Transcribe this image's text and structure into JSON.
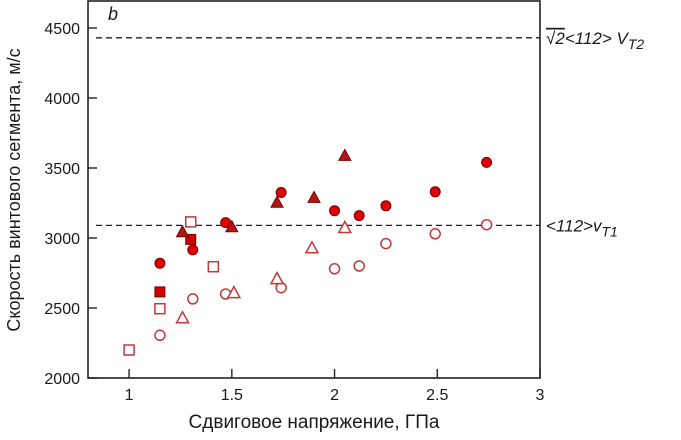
{
  "chart_data": {
    "type": "scatter",
    "panel_label": "b",
    "xlabel": "Сдвиговое напряжение, ГПа",
    "ylabel": "Скорость винтового сегмента, м/с",
    "xlim": [
      0.8,
      3.0
    ],
    "ylim": [
      2000,
      4700
    ],
    "xticks": [
      1,
      1.5,
      2,
      2.5,
      3
    ],
    "xtick_labels": [
      "1",
      "1.5",
      "2",
      "2.5",
      "3"
    ],
    "yticks": [
      2000,
      2500,
      3000,
      3500,
      4000,
      4500
    ],
    "ytick_labels": [
      "2000",
      "2500",
      "3000",
      "3500",
      "4000",
      "4500"
    ],
    "grid": false,
    "reference_lines": [
      {
        "y": 4430,
        "label_prefix": "√2",
        "label_main": "<112> V",
        "label_sub": "T2"
      },
      {
        "y": 3090,
        "label_prefix": "",
        "label_main": "<112>v",
        "label_sub": "T1"
      }
    ],
    "series": [
      {
        "marker": "circle",
        "filled": true,
        "color": "#e00000",
        "x": [
          1.15,
          1.31,
          1.47,
          1.74,
          2.0,
          2.12,
          2.25,
          2.49,
          2.74
        ],
        "y": [
          2820,
          2915,
          3110,
          3325,
          3195,
          3160,
          3230,
          3330,
          3540
        ]
      },
      {
        "marker": "circle",
        "filled": false,
        "color": "#c03a3a",
        "x": [
          1.15,
          1.31,
          1.47,
          1.74,
          2.0,
          2.12,
          2.25,
          2.49,
          2.74
        ],
        "y": [
          2305,
          2565,
          2600,
          2645,
          2780,
          2800,
          2960,
          3030,
          3095
        ]
      },
      {
        "marker": "square",
        "filled": true,
        "color": "#d00000",
        "x": [
          1.15,
          1.3
        ],
        "y": [
          2615,
          2990
        ]
      },
      {
        "marker": "square",
        "filled": false,
        "color": "#c03a3a",
        "x": [
          1.0,
          1.15,
          1.3,
          1.41
        ],
        "y": [
          2200,
          2495,
          3115,
          2795
        ]
      },
      {
        "marker": "triangle",
        "filled": true,
        "color": "#b01818",
        "x": [
          1.26,
          1.5,
          1.72,
          1.9,
          2.05
        ],
        "y": [
          3045,
          3080,
          3255,
          3290,
          3590
        ]
      },
      {
        "marker": "triangle",
        "filled": false,
        "color": "#c03a3a",
        "x": [
          1.26,
          1.51,
          1.72,
          1.89,
          2.05
        ],
        "y": [
          2430,
          2610,
          2710,
          2930,
          3075
        ]
      }
    ]
  }
}
